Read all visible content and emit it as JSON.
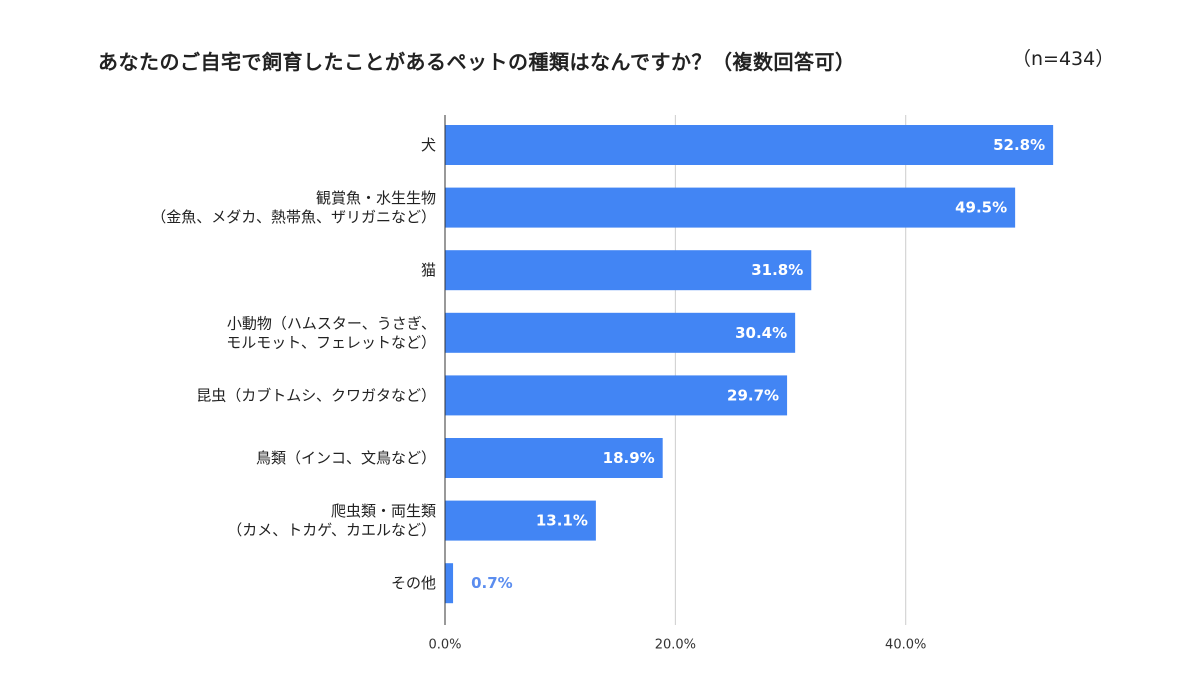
{
  "title": "あなたのご自宅で飼育したことがあるペットの種類はなんですか？（複数回答可）",
  "sample_size": "（n=434）",
  "chart_data": {
    "type": "bar",
    "orientation": "horizontal",
    "categories": [
      [
        "犬"
      ],
      [
        "観賞魚・水生生物",
        "（金魚、メダカ、熱帯魚、ザリガニなど）"
      ],
      [
        "猫"
      ],
      [
        "小動物（ハムスター、うさぎ、",
        "モルモット、フェレットなど）"
      ],
      [
        "昆虫（カブトムシ、クワガタなど）"
      ],
      [
        "鳥類（インコ、文鳥など）"
      ],
      [
        "爬虫類・両生類",
        "（カメ、トカゲ、カエルなど）"
      ],
      [
        "その他"
      ]
    ],
    "values": [
      52.8,
      49.5,
      31.8,
      30.4,
      29.7,
      18.9,
      13.1,
      0.7
    ],
    "value_labels": [
      "52.8%",
      "49.5%",
      "31.8%",
      "30.4%",
      "29.7%",
      "18.9%",
      "13.1%",
      "0.7%"
    ],
    "xlim": [
      0,
      56
    ],
    "xticks": [
      0,
      20,
      40
    ],
    "xtick_labels": [
      "0.0%",
      "20.0%",
      "40.0%"
    ],
    "grid": true,
    "legend": "none",
    "bar_color": "#4285f4",
    "label_inside_color": "#ffffff",
    "label_outside_color": "#5b8def"
  }
}
